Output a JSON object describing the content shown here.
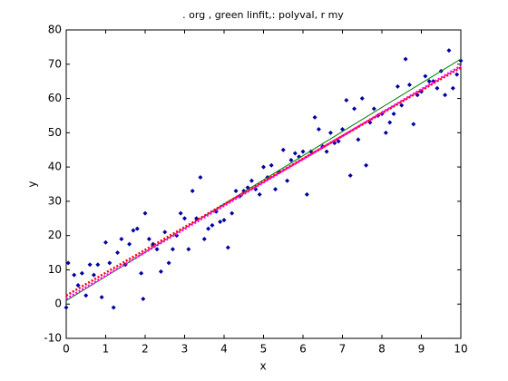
{
  "chart_data": {
    "type": "scatter",
    "title": ". org , green linfit,: polyval, r my",
    "x_label": "x",
    "y_label": "y",
    "xlim": [
      0,
      10
    ],
    "ylim": [
      -10,
      80
    ],
    "xticks": [
      0,
      1,
      2,
      3,
      4,
      5,
      6,
      7,
      8,
      9,
      10
    ],
    "yticks": [
      -10,
      0,
      10,
      20,
      30,
      40,
      50,
      60,
      70,
      80
    ],
    "series": [
      {
        "color": "#0000a0",
        "marker": "dot",
        "x": [
          0,
          0.05,
          0.2,
          0.3,
          0.4,
          0.5,
          0.6,
          0.7,
          0.8,
          0.9,
          1.0,
          1.1,
          1.2,
          1.3,
          1.4,
          1.5,
          1.6,
          1.7,
          1.8,
          1.9,
          1.95,
          2.0,
          2.1,
          2.2,
          2.3,
          2.4,
          2.5,
          2.6,
          2.7,
          2.8,
          2.9,
          3.0,
          3.1,
          3.2,
          3.3,
          3.4,
          3.5,
          3.6,
          3.7,
          3.8,
          3.9,
          4.0,
          4.1,
          4.2,
          4.3,
          4.4,
          4.5,
          4.6,
          4.7,
          4.8,
          4.9,
          5.0,
          5.1,
          5.2,
          5.3,
          5.4,
          5.5,
          5.6,
          5.7,
          5.8,
          5.9,
          6.0,
          6.1,
          6.2,
          6.3,
          6.4,
          6.5,
          6.6,
          6.7,
          6.8,
          6.9,
          7.0,
          7.1,
          7.2,
          7.3,
          7.4,
          7.5,
          7.6,
          7.7,
          7.8,
          7.9,
          8.0,
          8.1,
          8.2,
          8.3,
          8.4,
          8.5,
          8.6,
          8.7,
          8.8,
          8.9,
          9.0,
          9.1,
          9.2,
          9.3,
          9.4,
          9.5,
          9.6,
          9.7,
          9.8,
          9.9,
          10.0
        ],
        "values": [
          -1,
          12,
          8.5,
          5.5,
          9,
          2.5,
          11.5,
          8.5,
          11.5,
          2,
          18,
          12,
          -1,
          15,
          19,
          11.5,
          17.5,
          21.5,
          22,
          9,
          1.5,
          26.5,
          19,
          17.5,
          16,
          9.5,
          21,
          12,
          16,
          20,
          26.5,
          25,
          16,
          33,
          25,
          37,
          19,
          22,
          23,
          27,
          24,
          24.5,
          16.5,
          26.5,
          33,
          31.5,
          33,
          34,
          36,
          33.5,
          32,
          40,
          37,
          40.5,
          33.5,
          38.5,
          45,
          36,
          42,
          44,
          43,
          44.5,
          32,
          44.5,
          54.5,
          51,
          46,
          44.5,
          50,
          47,
          47.5,
          51,
          59.5,
          37.5,
          57,
          48,
          60,
          40.5,
          53,
          57,
          55,
          55.5,
          50,
          53,
          55.5,
          63.5,
          58,
          71.5,
          64,
          52.5,
          61,
          62,
          66.5,
          65,
          65,
          63,
          68,
          61,
          74,
          63,
          67,
          71
        ]
      },
      {
        "color": "#008000",
        "marker": "line",
        "x": [
          0,
          10
        ],
        "values": [
          1,
          71.5
        ]
      },
      {
        "color": "#ff0000",
        "marker": "dotted",
        "x": [
          0,
          10
        ],
        "values": [
          2.5,
          69
        ]
      },
      {
        "color": "#ff00ff",
        "marker": "dotted",
        "x": [
          0,
          10
        ],
        "values": [
          1.5,
          69.5
        ]
      }
    ]
  }
}
